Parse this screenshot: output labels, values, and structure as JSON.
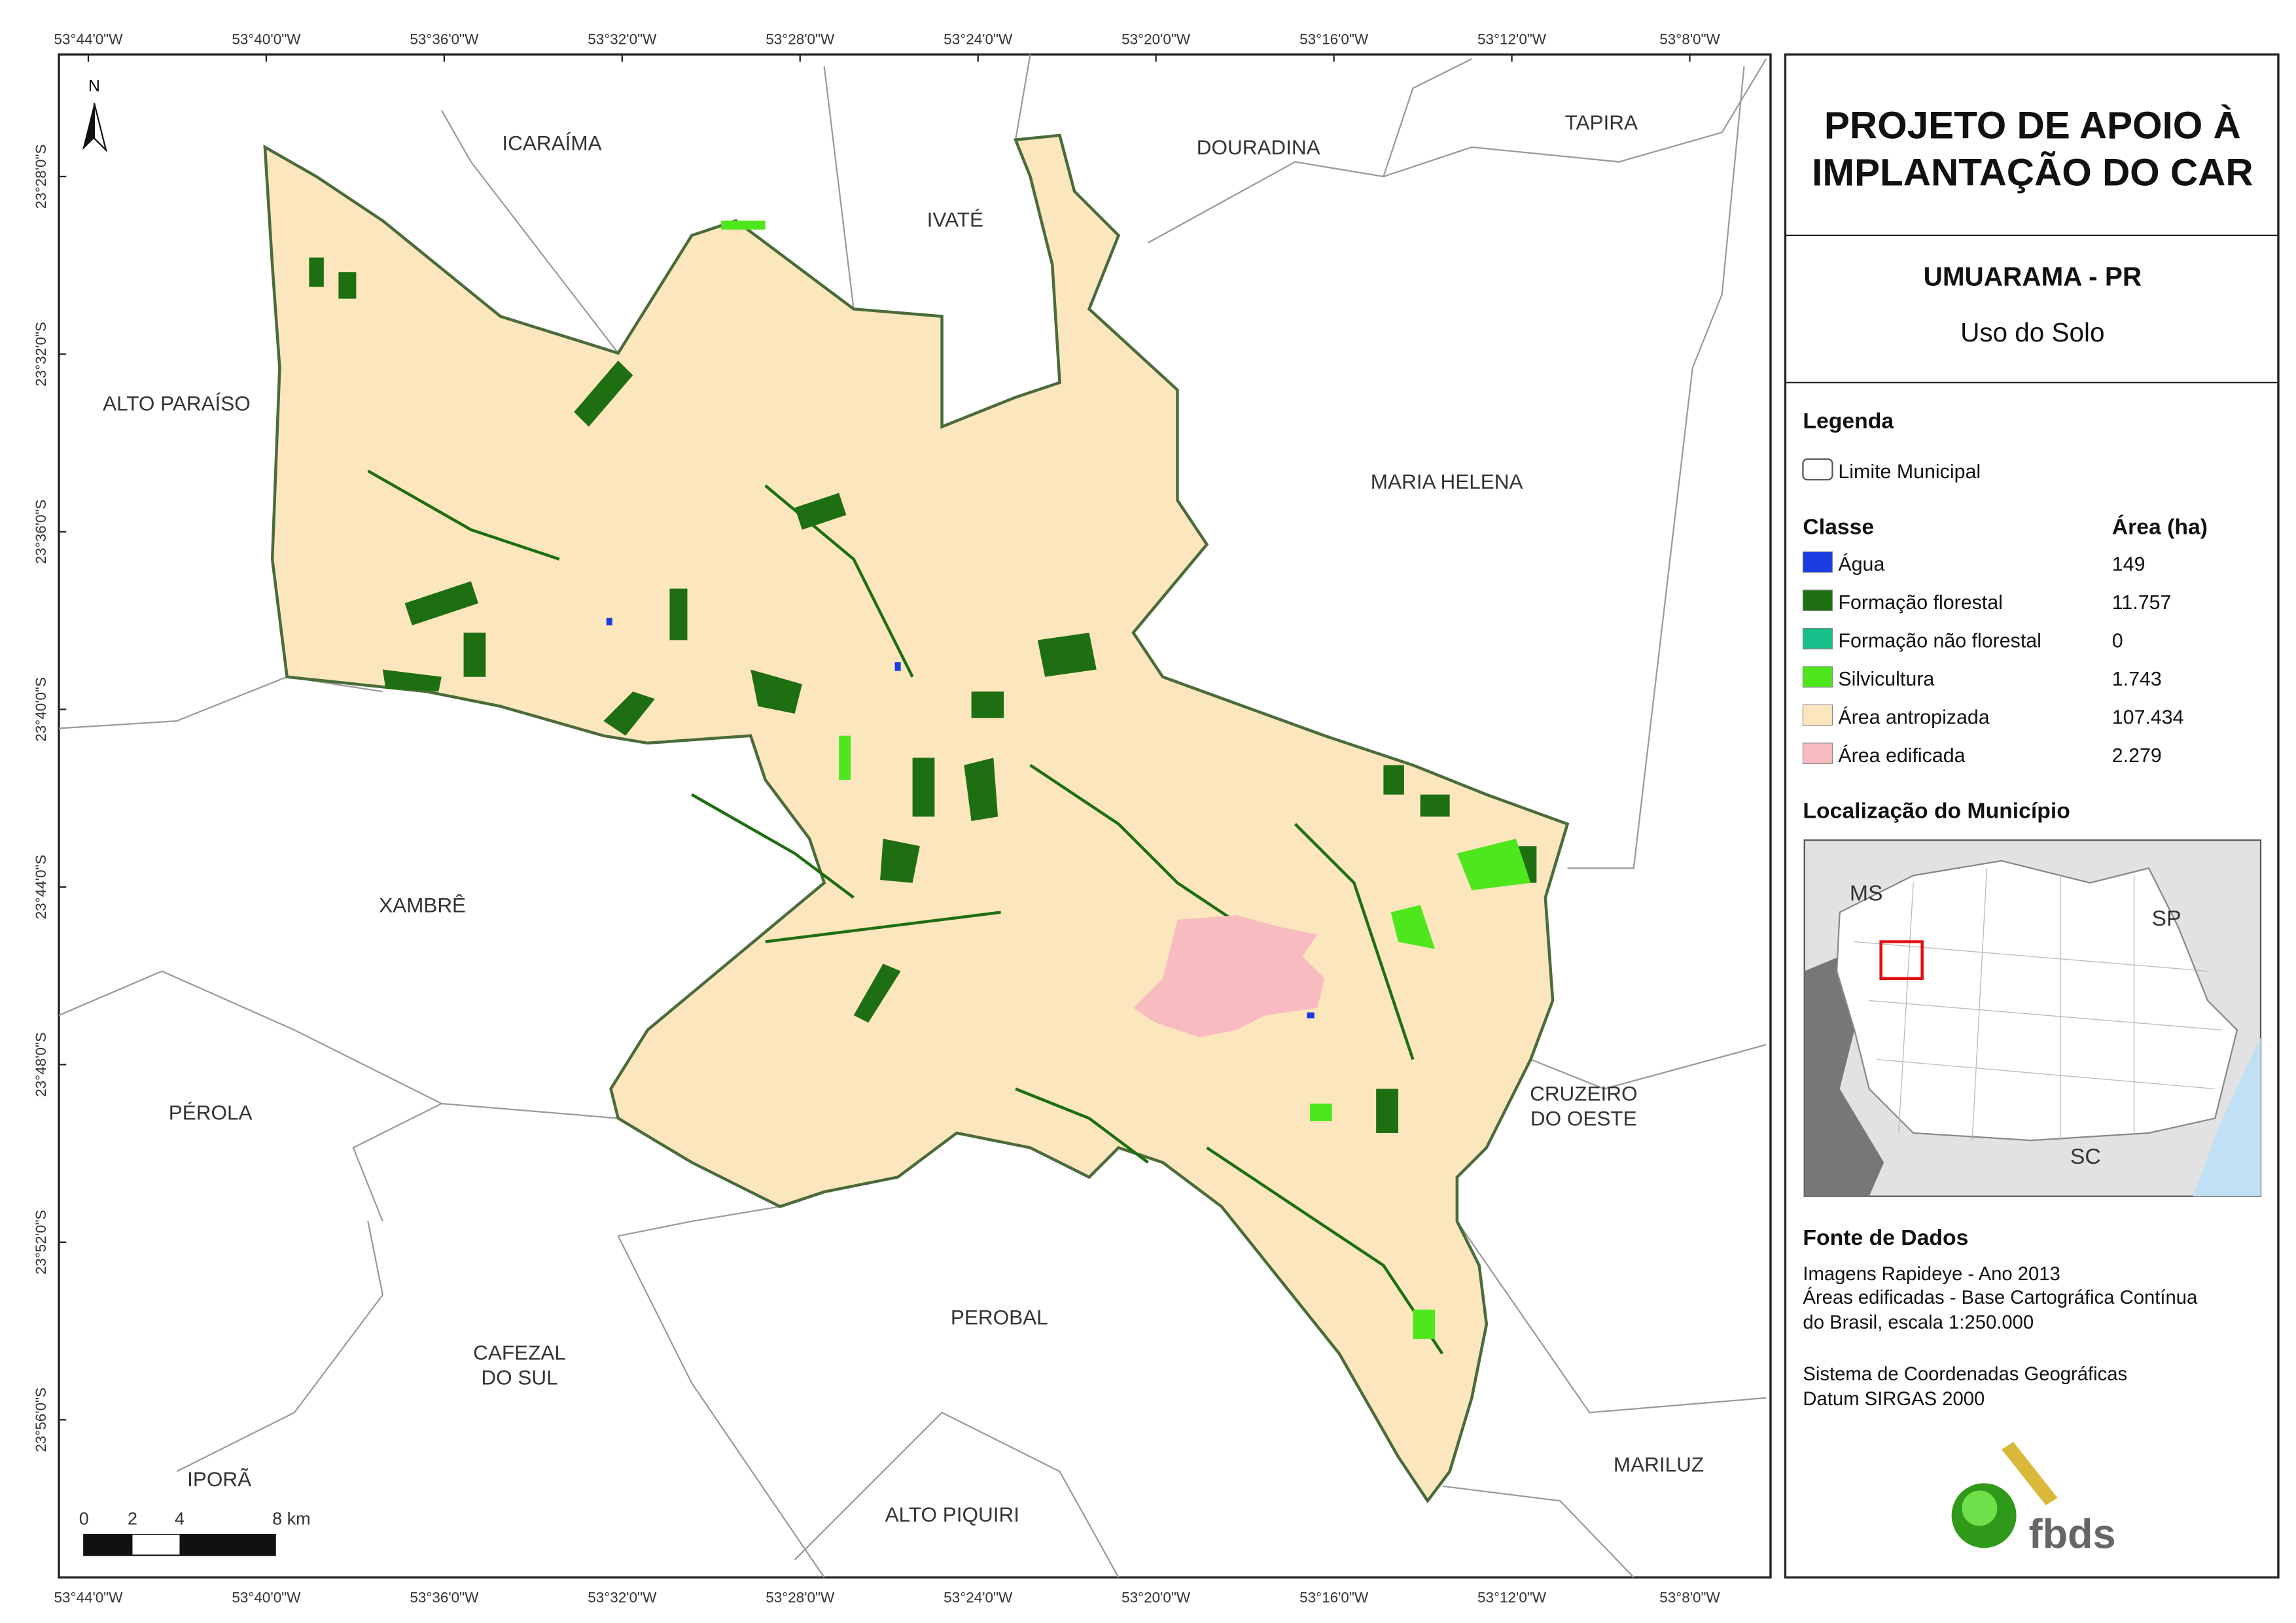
{
  "map_frame": {
    "longitude_labels": [
      "53°44'0\"W",
      "53°40'0\"W",
      "53°36'0\"W",
      "53°32'0\"W",
      "53°28'0\"W",
      "53°24'0\"W",
      "53°20'0\"W",
      "53°16'0\"W",
      "53°12'0\"W",
      "53°8'0\"W"
    ],
    "latitude_labels": [
      "23°28'0\"S",
      "23°32'0\"S",
      "23°36'0\"S",
      "23°40'0\"S",
      "23°44'0\"S",
      "23°48'0\"S",
      "23°52'0\"S",
      "23°56'0\"S"
    ]
  },
  "map": {
    "north_label": "N",
    "places": [
      {
        "lines": [
          "ICARAÍMA"
        ]
      },
      {
        "lines": [
          "IVATÉ"
        ]
      },
      {
        "lines": [
          "DOURADINA"
        ]
      },
      {
        "lines": [
          "TAPIRA"
        ]
      },
      {
        "lines": [
          "ALTO PARAÍSO"
        ]
      },
      {
        "lines": [
          "MARIA HELENA"
        ]
      },
      {
        "lines": [
          "XAMBRÊ"
        ]
      },
      {
        "lines": [
          "PÉROLA"
        ]
      },
      {
        "lines": [
          "CRUZEIRO",
          "DO OESTE"
        ]
      },
      {
        "lines": [
          "PEROBAL"
        ]
      },
      {
        "lines": [
          "CAFEZAL",
          "DO SUL"
        ]
      },
      {
        "lines": [
          "IPORÃ"
        ]
      },
      {
        "lines": [
          "MARILUZ"
        ]
      },
      {
        "lines": [
          "ALTO PIQUIRI"
        ]
      }
    ],
    "scale_labels": [
      "0",
      "2",
      "4",
      "8 km"
    ]
  },
  "panel": {
    "title": [
      "PROJETO DE APOIO À",
      "IMPLANTAÇÃO DO CAR"
    ],
    "subtitle": "UMUARAMA - PR",
    "theme": "Uso do Solo",
    "legend": {
      "heading": "Legenda",
      "boundary": "Limite Municipal",
      "class_header": "Classe",
      "area_header": "Área (ha)",
      "classes": [
        {
          "name": "Água",
          "area": "149",
          "color": "#1a3ce0"
        },
        {
          "name": "Formação florestal",
          "area": "11.757",
          "color": "#1e6e12"
        },
        {
          "name": "Formação não florestal",
          "area": "0",
          "color": "#16c08a"
        },
        {
          "name": "Silvicultura",
          "area": "1.743",
          "color": "#4ee61c"
        },
        {
          "name": "Área antropizada",
          "area": "107.434",
          "color": "#fbe6bd"
        },
        {
          "name": "Área edificada",
          "area": "2.279",
          "color": "#f8bcc0"
        }
      ]
    },
    "location": {
      "heading": "Localização do Município",
      "states": [
        "MS",
        "SP",
        "SC"
      ]
    },
    "sources": {
      "heading": "Fonte de Dados",
      "lines": [
        "Imagens Rapideye - Ano 2013",
        "Áreas edificadas - Base Cartográfica Contínua",
        "do Brasil, escala 1:250.000",
        "Sistema de Coordenadas Geográficas",
        "Datum SIRGAS 2000"
      ]
    },
    "logo": "fbds"
  }
}
